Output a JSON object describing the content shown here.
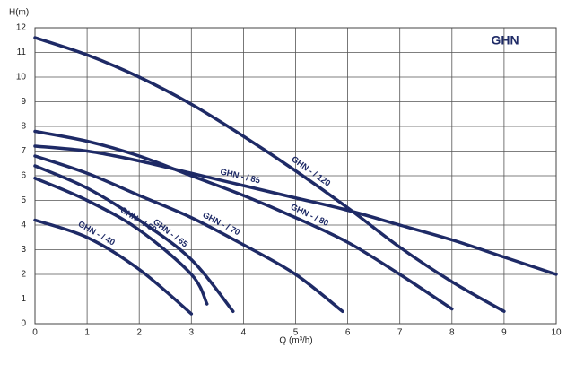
{
  "chart_data": {
    "type": "line",
    "corner_label": "GHN",
    "x_label": "Q (m³/h)",
    "y_label": "H(m)",
    "xlim": [
      0,
      10
    ],
    "ylim": [
      0,
      12
    ],
    "xticks": [
      0,
      1,
      2,
      3,
      4,
      5,
      6,
      7,
      8,
      9,
      10
    ],
    "yticks": [
      0,
      1,
      2,
      3,
      4,
      5,
      6,
      7,
      8,
      9,
      10,
      11,
      12
    ],
    "grid": true,
    "series": [
      {
        "name": "GHN - / 120",
        "color": "#1e2a66",
        "x": [
          0,
          1,
          2,
          3,
          4,
          5,
          6,
          7,
          8,
          9
        ],
        "values": [
          11.6,
          10.9,
          10.0,
          8.9,
          7.6,
          6.2,
          4.7,
          3.1,
          1.7,
          0.5
        ]
      },
      {
        "name": "GHN - / 85",
        "color": "#1e2a66",
        "x": [
          0,
          1,
          2,
          3,
          4,
          5,
          6,
          7,
          8,
          9,
          10
        ],
        "values": [
          7.2,
          7.0,
          6.6,
          6.1,
          5.6,
          5.1,
          4.6,
          4.0,
          3.4,
          2.7,
          2.0
        ]
      },
      {
        "name": "GHN - / 80",
        "color": "#1e2a66",
        "x": [
          0,
          1,
          2,
          3,
          4,
          5,
          6,
          7,
          8
        ],
        "values": [
          7.8,
          7.4,
          6.8,
          6.0,
          5.2,
          4.3,
          3.3,
          2.0,
          0.6
        ]
      },
      {
        "name": "GHN - / 70",
        "color": "#1e2a66",
        "x": [
          0,
          1,
          2,
          3,
          4,
          5,
          5.9
        ],
        "values": [
          6.8,
          6.1,
          5.2,
          4.3,
          3.2,
          2.0,
          0.5
        ]
      },
      {
        "name": "GHN - / 65",
        "color": "#1e2a66",
        "x": [
          0,
          1,
          2,
          3,
          3.8
        ],
        "values": [
          6.4,
          5.5,
          4.2,
          2.6,
          0.5
        ]
      },
      {
        "name": "GHN - / 60",
        "color": "#1e2a66",
        "x": [
          0,
          1,
          2,
          3,
          3.3
        ],
        "values": [
          5.9,
          5.0,
          3.8,
          2.0,
          0.8
        ]
      },
      {
        "name": "GHN - / 40",
        "color": "#1e2a66",
        "x": [
          0,
          1,
          2,
          3
        ],
        "values": [
          4.2,
          3.5,
          2.2,
          0.4
        ]
      }
    ]
  }
}
